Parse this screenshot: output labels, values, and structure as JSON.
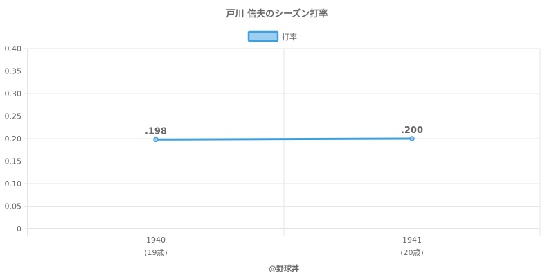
{
  "chart_data": {
    "type": "line",
    "title": "戸川 信夫のシーズン打率",
    "legend": {
      "position": "top",
      "entries": [
        "打率"
      ]
    },
    "categories": [
      "1940",
      "1941"
    ],
    "category_sublabels": [
      "(19歳)",
      "(20歳)"
    ],
    "series": [
      {
        "name": "打率",
        "values": [
          0.198,
          0.2
        ],
        "data_labels": [
          ".198",
          ".200"
        ],
        "color": "#3c9fe0",
        "fill_color": "#9ecdf0"
      }
    ],
    "y_ticks": [
      "0",
      "0.05",
      "0.10",
      "0.15",
      "0.20",
      "0.25",
      "0.30",
      "0.35",
      "0.40"
    ],
    "ylim": [
      0,
      0.4
    ],
    "grid": true,
    "xlabel": "",
    "ylabel": ""
  },
  "credit": "@野球丼",
  "colors": {
    "grid": "#e6e6e6",
    "axis": "#c8c8c8",
    "text": "#666666",
    "line": "#3c9fe0",
    "legend_fill": "#9ecdf0"
  }
}
